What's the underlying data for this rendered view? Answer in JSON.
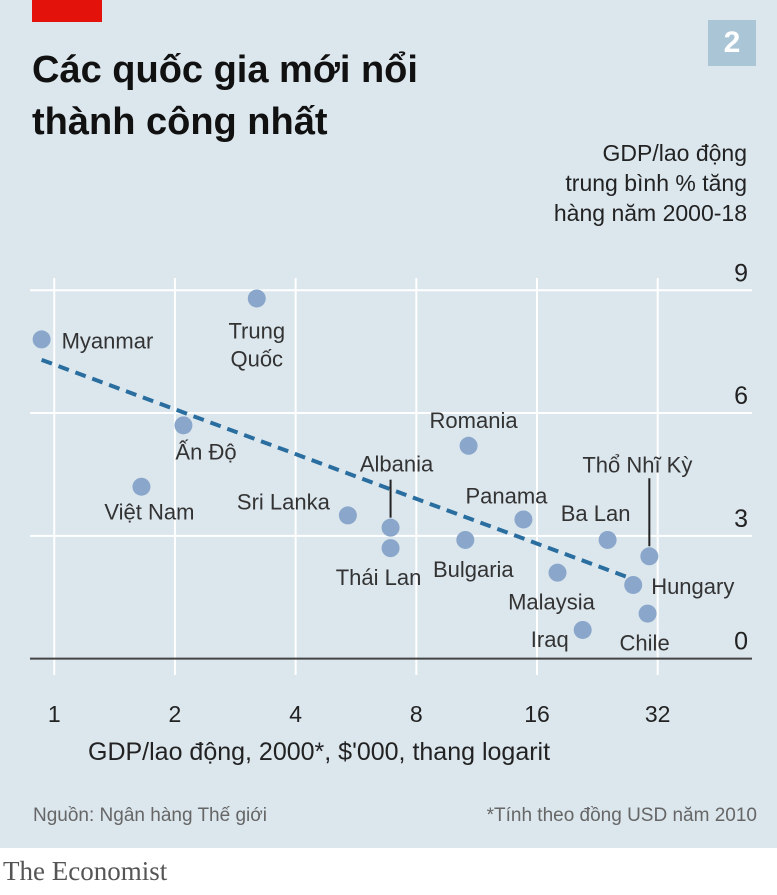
{
  "header": {
    "badge": "2",
    "title_line1": "Các quốc gia mới nổi",
    "title_line2": "thành công nhất"
  },
  "colors": {
    "panel": "#dbe6ed",
    "accent": "#e3120b",
    "point": "#8aa7cb",
    "trend": "#2a6ea0",
    "grid": "#ffffff"
  },
  "chart_data": {
    "type": "scatter",
    "ylabel_lines": [
      "GDP/lao động",
      "trung bình % tăng",
      "hàng năm 2000-18"
    ],
    "xlabel": "GDP/lao động, 2000*, $'000, thang logarit",
    "x_scale": "log2",
    "x_ticks": [
      1,
      2,
      4,
      8,
      16,
      32
    ],
    "x_tick_labels": [
      "1",
      "2",
      "4",
      "8",
      "16",
      "32"
    ],
    "xlim": [
      0.87,
      55
    ],
    "y_ticks": [
      0,
      3,
      6,
      9
    ],
    "y_tick_labels": [
      "0",
      "3",
      "6",
      "9"
    ],
    "ylim": [
      -0.4,
      9.3
    ],
    "grid": true,
    "points": [
      {
        "label": "Myanmar",
        "x": 0.93,
        "y": 7.8
      },
      {
        "label": "Trung Quốc",
        "x": 3.2,
        "y": 8.8
      },
      {
        "label": "Ấn Độ",
        "x": 2.1,
        "y": 5.7
      },
      {
        "label": "Việt Nam",
        "x": 1.65,
        "y": 4.2
      },
      {
        "label": "Sri Lanka",
        "x": 5.4,
        "y": 3.5
      },
      {
        "label": "Albania",
        "x": 6.9,
        "y": 3.2
      },
      {
        "label": "Thái Lan",
        "x": 6.9,
        "y": 2.7
      },
      {
        "label": "Romania",
        "x": 10.8,
        "y": 5.2
      },
      {
        "label": "Bulgaria",
        "x": 10.6,
        "y": 2.9
      },
      {
        "label": "Panama",
        "x": 14.8,
        "y": 3.4
      },
      {
        "label": "Ba Lan",
        "x": 24.0,
        "y": 2.9
      },
      {
        "label": "Thổ Nhĩ Kỳ",
        "x": 30.5,
        "y": 2.5
      },
      {
        "label": "Malaysia",
        "x": 18.0,
        "y": 2.1
      },
      {
        "label": "Hungary",
        "x": 27.8,
        "y": 1.8
      },
      {
        "label": "Chile",
        "x": 30.2,
        "y": 1.1
      },
      {
        "label": "Iraq",
        "x": 20.8,
        "y": 0.7
      }
    ],
    "trendline": {
      "x": [
        0.93,
        28.5
      ],
      "y": [
        7.3,
        1.9
      ]
    }
  },
  "footer": {
    "source": "Nguồn: Ngân hàng Thế giới",
    "footnote": "*Tính theo đồng USD năm 2010",
    "brand": "The Economist"
  }
}
